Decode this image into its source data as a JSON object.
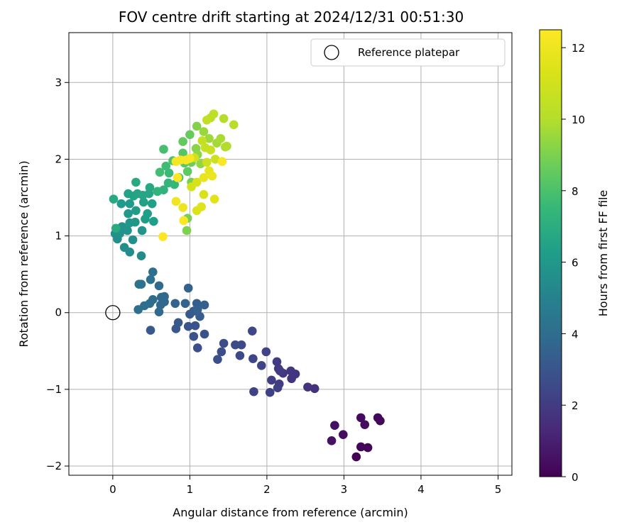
{
  "chart_data": {
    "type": "scatter",
    "title": "FOV centre drift starting at 2024/12/31 00:51:30",
    "xlabel": "Angular distance from reference (arcmin)",
    "ylabel": "Rotation from reference (arcmin)",
    "xlim": [
      -0.57,
      5.18
    ],
    "ylim": [
      -2.12,
      3.65
    ],
    "xticks": [
      0,
      1,
      2,
      3,
      4,
      5
    ],
    "yticks": [
      -2,
      -1,
      0,
      1,
      2,
      3
    ],
    "grid": true,
    "legend": {
      "position": "top-right",
      "entries": [
        {
          "label": "Reference platepar",
          "marker": "hollow-circle"
        }
      ]
    },
    "reference_point": {
      "x": 0,
      "y": 0
    },
    "colorbar": {
      "label": "Hours from first FF file",
      "min": 0,
      "max": 12.5,
      "ticks": [
        0,
        2,
        4,
        6,
        8,
        10,
        12
      ],
      "colormap": "viridis"
    },
    "points": [
      {
        "x": 3.16,
        "y": -1.88,
        "c": 0.05
      },
      {
        "x": 3.31,
        "y": -1.76,
        "c": 0.1
      },
      {
        "x": 3.22,
        "y": -1.75,
        "c": 0.15
      },
      {
        "x": 3.44,
        "y": -1.37,
        "c": 0.2
      },
      {
        "x": 3.47,
        "y": -1.41,
        "c": 0.25
      },
      {
        "x": 3.22,
        "y": -1.37,
        "c": 0.3
      },
      {
        "x": 3.27,
        "y": -1.46,
        "c": 0.35
      },
      {
        "x": 2.99,
        "y": -1.59,
        "c": 0.4
      },
      {
        "x": 2.88,
        "y": -1.47,
        "c": 0.45
      },
      {
        "x": 2.84,
        "y": -1.67,
        "c": 0.5
      },
      {
        "x": 2.62,
        "y": -0.99,
        "c": 1.6
      },
      {
        "x": 2.53,
        "y": -0.97,
        "c": 1.65
      },
      {
        "x": 2.32,
        "y": -0.86,
        "c": 1.7
      },
      {
        "x": 2.37,
        "y": -0.8,
        "c": 1.75
      },
      {
        "x": 2.31,
        "y": -0.76,
        "c": 1.8
      },
      {
        "x": 2.21,
        "y": -0.79,
        "c": 1.85
      },
      {
        "x": 2.15,
        "y": -0.73,
        "c": 1.9
      },
      {
        "x": 2.13,
        "y": -0.64,
        "c": 1.95
      },
      {
        "x": 2.17,
        "y": -0.76,
        "c": 2.0
      },
      {
        "x": 2.16,
        "y": -0.93,
        "c": 2.05
      },
      {
        "x": 2.06,
        "y": -0.88,
        "c": 2.1
      },
      {
        "x": 2.14,
        "y": -0.98,
        "c": 2.15
      },
      {
        "x": 2.04,
        "y": -1.04,
        "c": 2.2
      },
      {
        "x": 1.83,
        "y": -1.03,
        "c": 2.25
      },
      {
        "x": 1.99,
        "y": -0.51,
        "c": 2.3
      },
      {
        "x": 1.93,
        "y": -0.69,
        "c": 2.35
      },
      {
        "x": 1.82,
        "y": -0.6,
        "c": 2.4
      },
      {
        "x": 1.81,
        "y": -0.24,
        "c": 2.45
      },
      {
        "x": 1.67,
        "y": -0.42,
        "c": 2.5
      },
      {
        "x": 1.65,
        "y": -0.56,
        "c": 2.55
      },
      {
        "x": 1.59,
        "y": -0.42,
        "c": 2.6
      },
      {
        "x": 1.44,
        "y": -0.4,
        "c": 2.65
      },
      {
        "x": 1.41,
        "y": -0.51,
        "c": 2.7
      },
      {
        "x": 1.36,
        "y": -0.61,
        "c": 2.75
      },
      {
        "x": 1.1,
        "y": -0.46,
        "c": 2.8
      },
      {
        "x": 1.19,
        "y": -0.28,
        "c": 2.85
      },
      {
        "x": 1.05,
        "y": -0.31,
        "c": 2.9
      },
      {
        "x": 1.07,
        "y": -0.17,
        "c": 2.95
      },
      {
        "x": 0.98,
        "y": -0.18,
        "c": 3.0
      },
      {
        "x": 0.85,
        "y": -0.13,
        "c": 3.05
      },
      {
        "x": 0.82,
        "y": -0.21,
        "c": 3.1
      },
      {
        "x": 0.49,
        "y": -0.23,
        "c": 3.15
      },
      {
        "x": 1.0,
        "y": -0.02,
        "c": 3.2
      },
      {
        "x": 1.05,
        "y": 0.02,
        "c": 3.25
      },
      {
        "x": 1.13,
        "y": -0.05,
        "c": 3.3
      },
      {
        "x": 1.09,
        "y": 0.12,
        "c": 3.35
      },
      {
        "x": 1.19,
        "y": 0.1,
        "c": 3.4
      },
      {
        "x": 1.1,
        "y": 0.04,
        "c": 3.45
      },
      {
        "x": 0.94,
        "y": 0.12,
        "c": 3.5
      },
      {
        "x": 0.98,
        "y": 0.32,
        "c": 3.55
      },
      {
        "x": 0.81,
        "y": 0.12,
        "c": 3.6
      },
      {
        "x": 0.67,
        "y": 0.14,
        "c": 3.65
      },
      {
        "x": 0.63,
        "y": 0.2,
        "c": 3.7
      },
      {
        "x": 0.67,
        "y": 0.21,
        "c": 3.75
      },
      {
        "x": 0.62,
        "y": 0.1,
        "c": 3.8
      },
      {
        "x": 0.6,
        "y": 0.01,
        "c": 3.85
      },
      {
        "x": 0.6,
        "y": 0.35,
        "c": 3.9
      },
      {
        "x": 0.52,
        "y": 0.17,
        "c": 3.95
      },
      {
        "x": 0.48,
        "y": 0.12,
        "c": 4.0
      },
      {
        "x": 0.41,
        "y": 0.09,
        "c": 4.05
      },
      {
        "x": 0.33,
        "y": 0.04,
        "c": 4.1
      },
      {
        "x": 0.52,
        "y": 0.53,
        "c": 4.15
      },
      {
        "x": 0.49,
        "y": 0.43,
        "c": 4.2
      },
      {
        "x": 0.37,
        "y": 0.37,
        "c": 4.25
      },
      {
        "x": 0.34,
        "y": 0.37,
        "c": 4.3
      },
      {
        "x": 0.37,
        "y": 0.74,
        "c": 5.4
      },
      {
        "x": 0.22,
        "y": 0.79,
        "c": 5.45
      },
      {
        "x": 0.15,
        "y": 0.85,
        "c": 5.5
      },
      {
        "x": 0.06,
        "y": 0.96,
        "c": 5.55
      },
      {
        "x": 0.26,
        "y": 0.95,
        "c": 5.6
      },
      {
        "x": 0.03,
        "y": 1.03,
        "c": 5.65
      },
      {
        "x": 0.09,
        "y": 1.03,
        "c": 5.7
      },
      {
        "x": 0.12,
        "y": 1.12,
        "c": 5.75
      },
      {
        "x": 0.19,
        "y": 1.07,
        "c": 5.8
      },
      {
        "x": 0.38,
        "y": 1.07,
        "c": 5.85
      },
      {
        "x": 0.22,
        "y": 1.17,
        "c": 5.9
      },
      {
        "x": 0.29,
        "y": 1.18,
        "c": 5.95
      },
      {
        "x": 0.2,
        "y": 1.29,
        "c": 6.0
      },
      {
        "x": 0.11,
        "y": 1.42,
        "c": 6.05
      },
      {
        "x": 0.22,
        "y": 1.42,
        "c": 6.1
      },
      {
        "x": 0.3,
        "y": 1.33,
        "c": 6.15
      },
      {
        "x": 0.42,
        "y": 1.22,
        "c": 6.2
      },
      {
        "x": 0.53,
        "y": 1.19,
        "c": 6.25
      },
      {
        "x": 0.45,
        "y": 1.29,
        "c": 6.3
      },
      {
        "x": 0.51,
        "y": 1.42,
        "c": 6.35
      },
      {
        "x": 0.4,
        "y": 1.44,
        "c": 6.4
      },
      {
        "x": 0.27,
        "y": 1.52,
        "c": 6.45
      },
      {
        "x": 0.2,
        "y": 1.55,
        "c": 6.5
      },
      {
        "x": 0.32,
        "y": 1.55,
        "c": 6.55
      },
      {
        "x": 0.39,
        "y": 1.53,
        "c": 6.6
      },
      {
        "x": 0.47,
        "y": 1.55,
        "c": 6.65
      },
      {
        "x": 0.48,
        "y": 1.63,
        "c": 6.7
      },
      {
        "x": 0.3,
        "y": 1.7,
        "c": 6.75
      },
      {
        "x": 0.01,
        "y": 1.48,
        "c": 6.8
      },
      {
        "x": 0.04,
        "y": 1.1,
        "c": 6.85
      },
      {
        "x": 0.66,
        "y": 1.6,
        "c": 7.2
      },
      {
        "x": 0.58,
        "y": 1.58,
        "c": 7.3
      },
      {
        "x": 0.72,
        "y": 1.69,
        "c": 7.4
      },
      {
        "x": 0.8,
        "y": 1.67,
        "c": 7.5
      },
      {
        "x": 0.73,
        "y": 1.82,
        "c": 7.6
      },
      {
        "x": 0.69,
        "y": 1.91,
        "c": 7.7
      },
      {
        "x": 0.61,
        "y": 1.83,
        "c": 7.8
      },
      {
        "x": 0.66,
        "y": 2.13,
        "c": 7.9
      },
      {
        "x": 0.78,
        "y": 1.98,
        "c": 8.0
      },
      {
        "x": 0.86,
        "y": 1.76,
        "c": 8.1
      },
      {
        "x": 0.91,
        "y": 2.08,
        "c": 8.2
      },
      {
        "x": 0.93,
        "y": 1.95,
        "c": 8.3
      },
      {
        "x": 0.97,
        "y": 1.84,
        "c": 8.4
      },
      {
        "x": 0.91,
        "y": 2.23,
        "c": 8.5
      },
      {
        "x": 1.0,
        "y": 2.32,
        "c": 8.6
      },
      {
        "x": 1.02,
        "y": 1.96,
        "c": 8.7
      },
      {
        "x": 1.02,
        "y": 1.7,
        "c": 8.8
      },
      {
        "x": 0.97,
        "y": 1.23,
        "c": 8.9
      },
      {
        "x": 0.96,
        "y": 1.07,
        "c": 9.0
      },
      {
        "x": 1.09,
        "y": 2.43,
        "c": 9.1
      },
      {
        "x": 1.08,
        "y": 2.14,
        "c": 9.2
      },
      {
        "x": 1.1,
        "y": 2.06,
        "c": 9.3
      },
      {
        "x": 1.14,
        "y": 1.94,
        "c": 9.4
      },
      {
        "x": 1.18,
        "y": 2.36,
        "c": 9.5
      },
      {
        "x": 1.25,
        "y": 2.27,
        "c": 9.6
      },
      {
        "x": 1.35,
        "y": 2.21,
        "c": 9.7
      },
      {
        "x": 1.4,
        "y": 2.27,
        "c": 9.8
      },
      {
        "x": 1.46,
        "y": 2.16,
        "c": 9.9
      },
      {
        "x": 1.48,
        "y": 2.17,
        "c": 9.95
      },
      {
        "x": 1.44,
        "y": 2.53,
        "c": 10.0
      },
      {
        "x": 1.57,
        "y": 2.45,
        "c": 10.1
      },
      {
        "x": 1.27,
        "y": 2.54,
        "c": 10.2
      },
      {
        "x": 1.31,
        "y": 2.59,
        "c": 10.3
      },
      {
        "x": 1.22,
        "y": 2.51,
        "c": 10.4
      },
      {
        "x": 1.16,
        "y": 2.24,
        "c": 10.5
      },
      {
        "x": 1.2,
        "y": 2.15,
        "c": 10.6
      },
      {
        "x": 1.27,
        "y": 2.12,
        "c": 10.7
      },
      {
        "x": 1.33,
        "y": 2.0,
        "c": 10.8
      },
      {
        "x": 1.22,
        "y": 1.96,
        "c": 10.9
      },
      {
        "x": 1.06,
        "y": 2.02,
        "c": 11.0
      },
      {
        "x": 1.02,
        "y": 1.64,
        "c": 11.1
      },
      {
        "x": 1.09,
        "y": 1.7,
        "c": 11.2
      },
      {
        "x": 1.18,
        "y": 1.54,
        "c": 11.3
      },
      {
        "x": 1.09,
        "y": 1.33,
        "c": 11.4
      },
      {
        "x": 1.15,
        "y": 1.38,
        "c": 11.5
      },
      {
        "x": 1.32,
        "y": 1.48,
        "c": 11.6
      },
      {
        "x": 1.25,
        "y": 1.85,
        "c": 11.7
      },
      {
        "x": 1.18,
        "y": 1.76,
        "c": 11.8
      },
      {
        "x": 1.29,
        "y": 1.78,
        "c": 11.9
      },
      {
        "x": 0.91,
        "y": 1.37,
        "c": 12.0
      },
      {
        "x": 0.82,
        "y": 1.45,
        "c": 12.1
      },
      {
        "x": 0.82,
        "y": 1.97,
        "c": 12.15
      },
      {
        "x": 0.88,
        "y": 1.99,
        "c": 12.2
      },
      {
        "x": 0.95,
        "y": 1.99,
        "c": 12.25
      },
      {
        "x": 1.0,
        "y": 2.01,
        "c": 12.3
      },
      {
        "x": 1.42,
        "y": 1.97,
        "c": 12.35
      },
      {
        "x": 0.84,
        "y": 1.76,
        "c": 12.4
      },
      {
        "x": 0.92,
        "y": 1.2,
        "c": 12.45
      },
      {
        "x": 0.65,
        "y": 0.99,
        "c": 12.5
      }
    ]
  }
}
